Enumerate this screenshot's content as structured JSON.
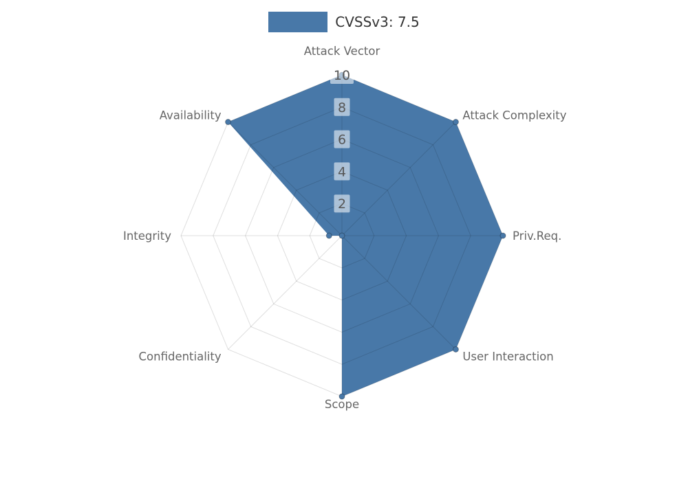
{
  "legend": {
    "label": "CVSSv3: 7.5"
  },
  "chart_data": {
    "type": "radar",
    "title": "CVSSv3: 7.5",
    "categories": [
      "Attack Vector",
      "Attack Complexity",
      "Priv.Req.",
      "User Interaction",
      "Scope",
      "Confidentiality",
      "Integrity",
      "Availability"
    ],
    "series": [
      {
        "name": "CVSSv3: 7.5",
        "color": "#4878a8",
        "values": [
          10,
          10,
          10,
          10,
          10,
          0,
          0.8,
          10
        ]
      }
    ],
    "ticks": [
      2,
      4,
      6,
      8,
      10
    ],
    "rmax": 10,
    "grid_shape": "polygon",
    "legend_position": "top",
    "colors": {
      "grid": "rgba(0,0,0,0.13)",
      "axis_label": "#666666",
      "tick_label": "#555555",
      "tick_label_bg": "rgba(255,255,255,0.55)",
      "legend_text": "#333333",
      "background": "#ffffff"
    }
  }
}
